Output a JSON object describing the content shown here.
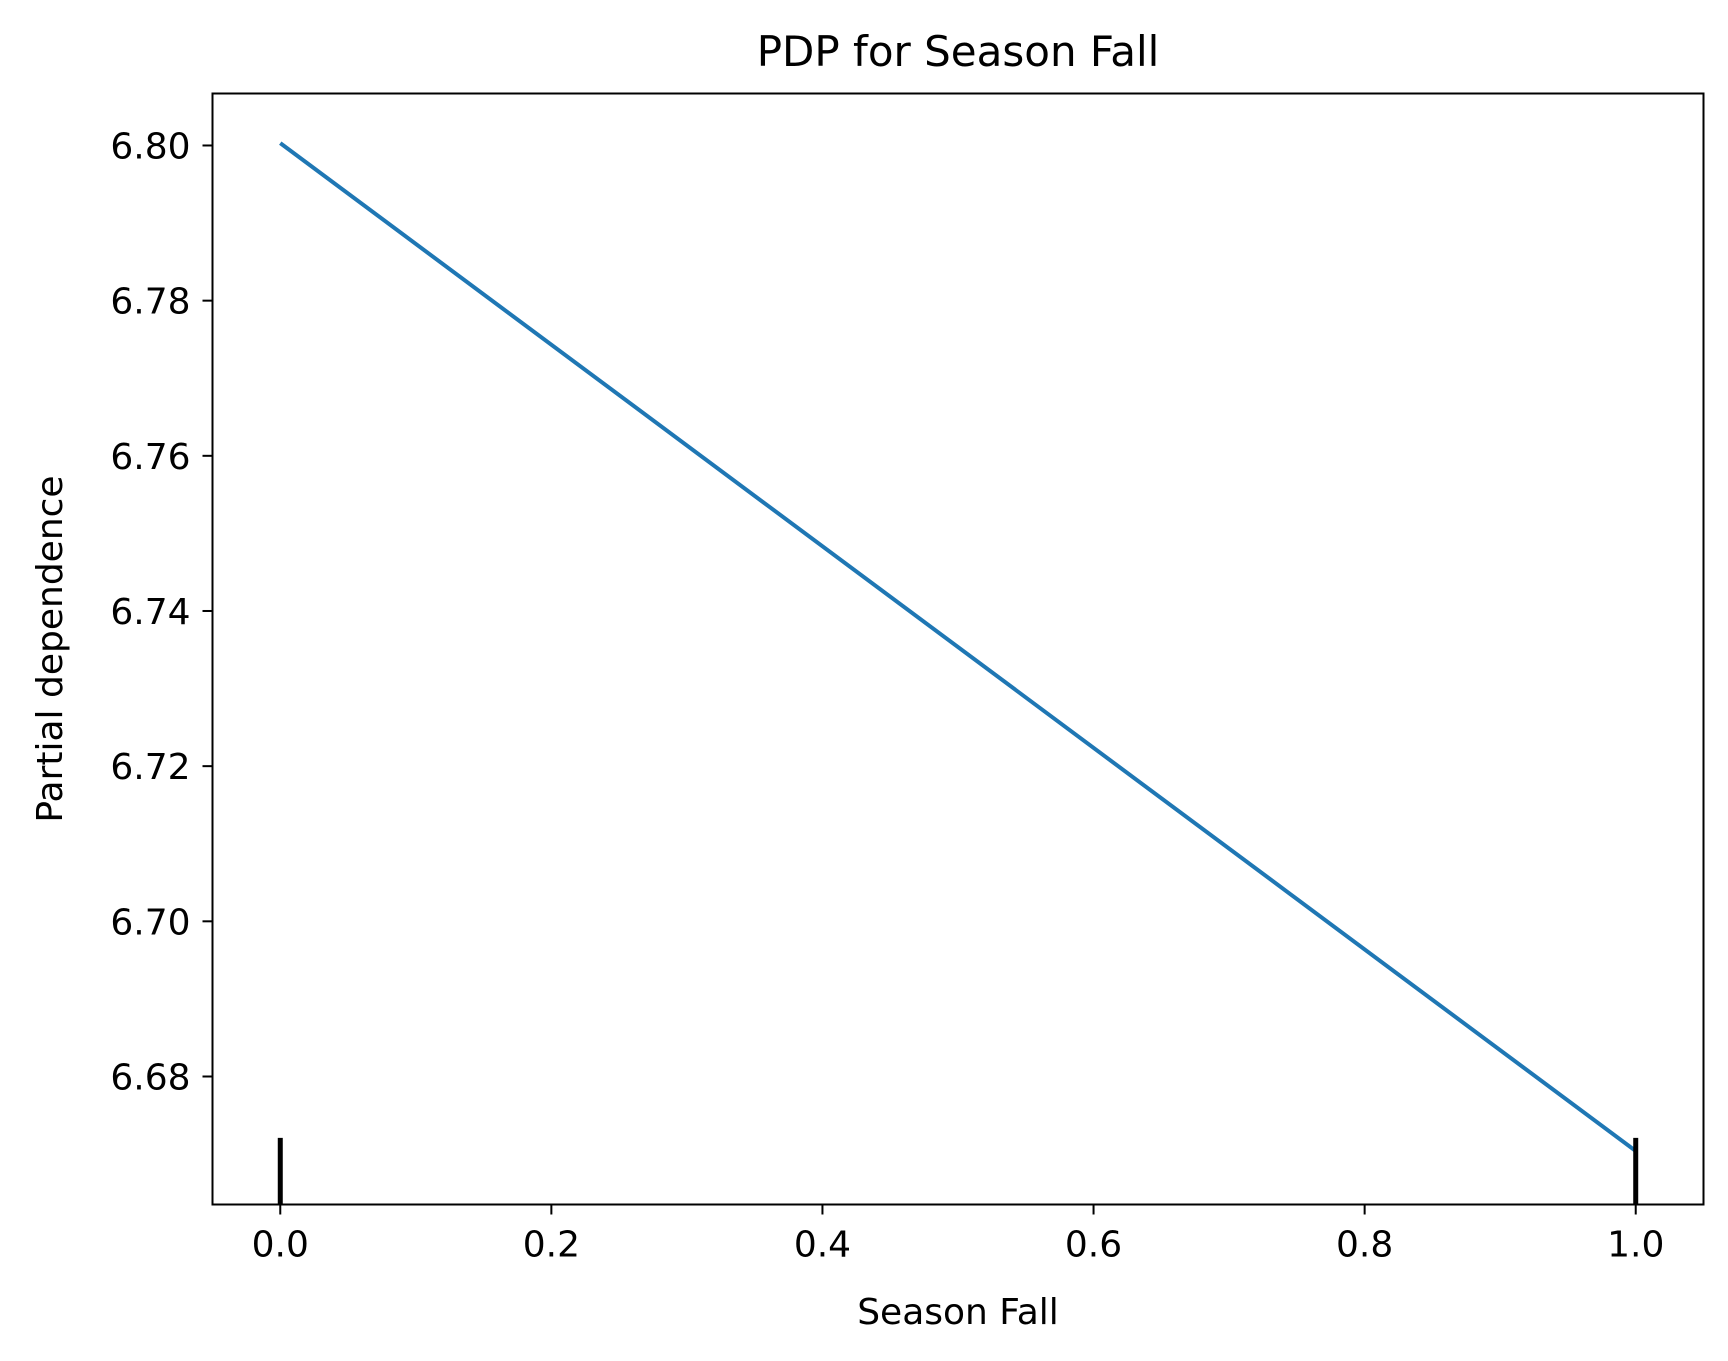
{
  "chart_data": {
    "type": "line",
    "title": "PDP for Season Fall",
    "xlabel": "Season Fall",
    "ylabel": "Partial dependence",
    "xlim": [
      -0.05,
      1.05
    ],
    "ylim": [
      6.6635,
      6.8067
    ],
    "x_ticks": [
      0.0,
      0.2,
      0.4,
      0.6,
      0.8,
      1.0
    ],
    "x_tick_labels": [
      "0.0",
      "0.2",
      "0.4",
      "0.6",
      "0.8",
      "1.0"
    ],
    "y_ticks": [
      6.68,
      6.7,
      6.72,
      6.74,
      6.76,
      6.78,
      6.8
    ],
    "y_tick_labels": [
      "6.68",
      "6.70",
      "6.72",
      "6.74",
      "6.76",
      "6.78",
      "6.80"
    ],
    "grid": false,
    "series": [
      {
        "x": [
          0.0,
          1.0
        ],
        "values": [
          6.8003,
          6.6704
        ],
        "color": "#1f77b4"
      }
    ],
    "rug": {
      "x": [
        0.0,
        1.0
      ],
      "color": "#000000"
    }
  }
}
